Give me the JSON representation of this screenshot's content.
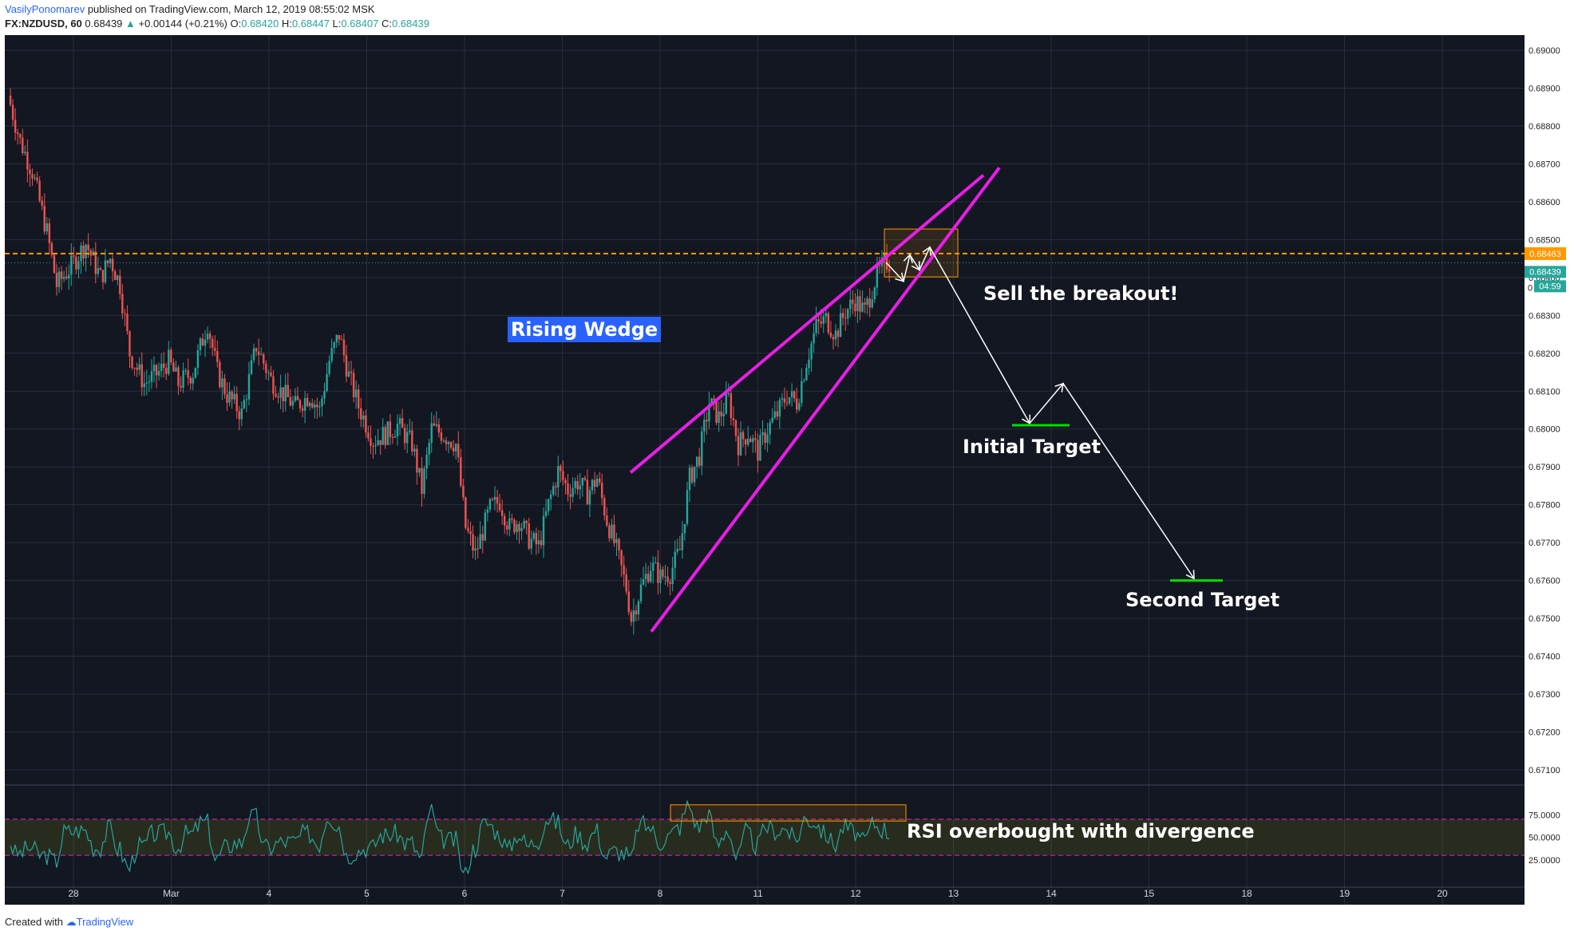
{
  "header": {
    "user": "VasilyPonomarev",
    "published": "published on TradingView.com, March 12, 2019 08:55:02 MSK",
    "symbol": "FX:NZDUSD, 60",
    "last": "0.68439",
    "change_arrow": "▲",
    "change": "+0.00144 (+0.21%)",
    "o_label": "O:",
    "o": "0.68420",
    "h_label": "H:",
    "h": "0.68447",
    "l_label": "L:",
    "l": "0.68407",
    "c_label": "C:",
    "c": "0.68439"
  },
  "footer": {
    "created": "Created with",
    "brand": "TradingView"
  },
  "colors": {
    "background": "#131722",
    "grid": "#2a2e39",
    "up_candle": "#26a69a",
    "down_candle": "#ef5350",
    "wedge": "#e91ee6",
    "orange_level": "#ff9800",
    "rsi_line": "#26a69a",
    "target_line": "#00e000",
    "label_box": "#2962ff"
  },
  "chart_data": {
    "type": "candlestick",
    "symbol": "FX:NZDUSD",
    "timeframe": "60",
    "ylim": [
      0.6706,
      0.6904
    ],
    "y_ticks": [
      "0.69000",
      "0.68900",
      "0.68800",
      "0.68700",
      "0.68600",
      "0.68500",
      "0.68400",
      "0.68300",
      "0.68200",
      "0.68100",
      "0.68000",
      "0.67900",
      "0.67800",
      "0.67700",
      "0.67600",
      "0.67500",
      "0.67400",
      "0.67300",
      "0.67200",
      "0.67100"
    ],
    "x_ticks": [
      "28",
      "Mar",
      "4",
      "5",
      "6",
      "7",
      "8",
      "11",
      "12",
      "13",
      "14",
      "15",
      "18",
      "19",
      "20"
    ],
    "price_close_path": [
      [
        0,
        0.6888
      ],
      [
        5,
        0.6876
      ],
      [
        10,
        0.6868
      ],
      [
        16,
        0.6852
      ],
      [
        20,
        0.6838
      ],
      [
        26,
        0.6843
      ],
      [
        32,
        0.6849
      ],
      [
        38,
        0.684
      ],
      [
        42,
        0.6845
      ],
      [
        46,
        0.6838
      ],
      [
        50,
        0.682
      ],
      [
        56,
        0.6812
      ],
      [
        62,
        0.6815
      ],
      [
        66,
        0.6818
      ],
      [
        70,
        0.6812
      ],
      [
        76,
        0.6815
      ],
      [
        82,
        0.6828
      ],
      [
        86,
        0.6815
      ],
      [
        90,
        0.6809
      ],
      [
        96,
        0.6804
      ],
      [
        102,
        0.6822
      ],
      [
        108,
        0.6813
      ],
      [
        112,
        0.681
      ],
      [
        118,
        0.6806
      ],
      [
        124,
        0.6809
      ],
      [
        128,
        0.6805
      ],
      [
        132,
        0.6818
      ],
      [
        136,
        0.6825
      ],
      [
        140,
        0.6814
      ],
      [
        144,
        0.6806
      ],
      [
        150,
        0.6797
      ],
      [
        156,
        0.6799
      ],
      [
        160,
        0.6801
      ],
      [
        166,
        0.6796
      ],
      [
        170,
        0.6784
      ],
      [
        174,
        0.68
      ],
      [
        178,
        0.6799
      ],
      [
        184,
        0.6796
      ],
      [
        188,
        0.6774
      ],
      [
        192,
        0.6767
      ],
      [
        198,
        0.6779
      ],
      [
        202,
        0.6781
      ],
      [
        206,
        0.6774
      ],
      [
        210,
        0.6776
      ],
      [
        214,
        0.6771
      ],
      [
        218,
        0.6769
      ],
      [
        222,
        0.678
      ],
      [
        226,
        0.6789
      ],
      [
        230,
        0.6784
      ],
      [
        234,
        0.6786
      ],
      [
        238,
        0.6783
      ],
      [
        242,
        0.6787
      ],
      [
        246,
        0.6776
      ],
      [
        250,
        0.6768
      ],
      [
        254,
        0.6758
      ],
      [
        256,
        0.675
      ],
      [
        260,
        0.6758
      ],
      [
        264,
        0.6764
      ],
      [
        268,
        0.6761
      ],
      [
        272,
        0.6762
      ],
      [
        276,
        0.6768
      ],
      [
        280,
        0.6787
      ],
      [
        284,
        0.6793
      ],
      [
        288,
        0.6807
      ],
      [
        292,
        0.6803
      ],
      [
        296,
        0.6808
      ],
      [
        300,
        0.6796
      ],
      [
        304,
        0.6799
      ],
      [
        308,
        0.6794
      ],
      [
        312,
        0.68
      ],
      [
        316,
        0.6804
      ],
      [
        320,
        0.6809
      ],
      [
        324,
        0.6807
      ],
      [
        328,
        0.6818
      ],
      [
        332,
        0.6827
      ],
      [
        336,
        0.6829
      ],
      [
        340,
        0.6825
      ],
      [
        344,
        0.6831
      ],
      [
        348,
        0.6834
      ],
      [
        352,
        0.6831
      ],
      [
        356,
        0.6839
      ],
      [
        360,
        0.6844
      ],
      [
        362,
        0.6844
      ]
    ],
    "rsi": {
      "levels": [
        "75.0000",
        "50.0000",
        "25.0000"
      ],
      "overbought": 70,
      "oversold": 30
    },
    "annotations": {
      "pattern": "Rising Wedge",
      "breakout": "Sell the breakout!",
      "target1": "Initial Target",
      "target2": "Second Target",
      "rsi_note": "RSI overbought with divergence"
    },
    "price_tags": {
      "level": "0.68463",
      "last": "0.68439",
      "countdown": "04:59",
      "hidden_tick": "0"
    },
    "levels": {
      "resistance": 0.68463,
      "target1": 0.6801,
      "target2": 0.676
    }
  }
}
